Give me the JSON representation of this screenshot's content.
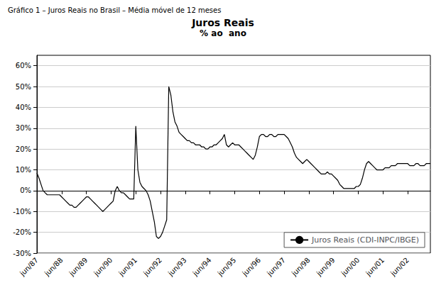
{
  "chart_data": {
    "type": "line",
    "outer_title": "Gráfico 1 – Juros Reais no Brasil – Média móvel de 12 meses",
    "title": "Juros Reais",
    "subtitle": "% ao  ano",
    "categories": [
      "jun/87",
      null,
      null,
      null,
      null,
      null,
      null,
      null,
      null,
      null,
      null,
      null,
      "jun/88",
      null,
      null,
      null,
      null,
      null,
      null,
      null,
      null,
      null,
      null,
      null,
      "jun/89",
      null,
      null,
      null,
      null,
      null,
      null,
      null,
      null,
      null,
      null,
      null,
      "jun/90",
      null,
      null,
      null,
      null,
      null,
      null,
      null,
      null,
      null,
      null,
      null,
      "jun/91",
      null,
      null,
      null,
      null,
      null,
      null,
      null,
      null,
      null,
      null,
      null,
      "jun/92",
      null,
      null,
      null,
      null,
      null,
      null,
      null,
      null,
      null,
      null,
      null,
      "jun/93",
      null,
      null,
      null,
      null,
      null,
      null,
      null,
      null,
      null,
      null,
      null,
      "jun/94",
      null,
      null,
      null,
      null,
      null,
      null,
      null,
      null,
      null,
      null,
      null,
      "jun/95",
      null,
      null,
      null,
      null,
      null,
      null,
      null,
      null,
      null,
      null,
      null,
      "jun/96",
      null,
      null,
      null,
      null,
      null,
      null,
      null,
      null,
      null,
      null,
      null,
      "jun/97",
      null,
      null,
      null,
      null,
      null,
      null,
      null,
      null,
      null,
      null,
      null,
      "jun/98",
      null,
      null,
      null,
      null,
      null,
      null,
      null,
      null,
      null,
      null,
      null,
      "jun/99",
      null,
      null,
      null,
      null,
      null,
      null,
      null,
      null,
      null,
      null,
      null,
      "jun/00",
      null,
      null,
      null,
      null,
      null,
      null,
      null,
      null,
      null,
      null,
      null,
      "jun/01",
      null,
      null,
      null,
      null,
      null,
      null,
      null,
      null,
      null,
      null,
      null,
      "jun/02",
      null,
      null,
      null,
      null,
      null,
      null,
      null,
      null,
      null,
      null,
      null
    ],
    "series": [
      {
        "name": "Juros Reais (CDI-INPC/IBGE)",
        "color": "#000000",
        "values": [
          0.085,
          0.06,
          0.03,
          0.0,
          -0.01,
          -0.02,
          -0.02,
          -0.02,
          -0.02,
          -0.02,
          -0.02,
          -0.02,
          -0.03,
          -0.04,
          -0.05,
          -0.06,
          -0.07,
          -0.07,
          -0.08,
          -0.08,
          -0.07,
          -0.06,
          -0.05,
          -0.04,
          -0.03,
          -0.03,
          -0.04,
          -0.05,
          -0.06,
          -0.07,
          -0.08,
          -0.09,
          -0.1,
          -0.09,
          -0.08,
          -0.07,
          -0.06,
          -0.05,
          0.0,
          0.02,
          0.0,
          -0.01,
          -0.01,
          -0.02,
          -0.03,
          -0.04,
          -0.04,
          -0.04,
          0.31,
          0.1,
          0.04,
          0.02,
          0.01,
          0.0,
          -0.02,
          -0.05,
          -0.1,
          -0.15,
          -0.22,
          -0.23,
          -0.22,
          -0.2,
          -0.17,
          -0.14,
          0.5,
          0.46,
          0.38,
          0.33,
          0.31,
          0.28,
          0.27,
          0.26,
          0.25,
          0.24,
          0.24,
          0.23,
          0.23,
          0.22,
          0.22,
          0.22,
          0.21,
          0.21,
          0.2,
          0.2,
          0.21,
          0.21,
          0.22,
          0.22,
          0.23,
          0.24,
          0.25,
          0.27,
          0.22,
          0.21,
          0.22,
          0.23,
          0.22,
          0.22,
          0.22,
          0.21,
          0.2,
          0.19,
          0.18,
          0.17,
          0.16,
          0.15,
          0.17,
          0.21,
          0.26,
          0.27,
          0.27,
          0.26,
          0.26,
          0.27,
          0.27,
          0.26,
          0.26,
          0.27,
          0.27,
          0.27,
          0.27,
          0.26,
          0.25,
          0.23,
          0.21,
          0.18,
          0.16,
          0.15,
          0.14,
          0.13,
          0.14,
          0.15,
          0.14,
          0.13,
          0.12,
          0.11,
          0.1,
          0.09,
          0.08,
          0.08,
          0.08,
          0.09,
          0.08,
          0.08,
          0.07,
          0.06,
          0.05,
          0.03,
          0.02,
          0.01,
          0.01,
          0.01,
          0.01,
          0.01,
          0.01,
          0.02,
          0.02,
          0.03,
          0.06,
          0.1,
          0.13,
          0.14,
          0.13,
          0.12,
          0.11,
          0.1,
          0.1,
          0.1,
          0.1,
          0.11,
          0.11,
          0.11,
          0.12,
          0.12,
          0.12,
          0.13,
          0.13,
          0.13,
          0.13,
          0.13,
          0.13,
          0.12,
          0.12,
          0.12,
          0.13,
          0.13,
          0.12,
          0.12,
          0.12,
          0.13,
          0.13,
          0.13
        ]
      }
    ],
    "ylim": [
      -0.3,
      0.65
    ],
    "yticks": [
      {
        "value": -0.3,
        "label": "-30%"
      },
      {
        "value": -0.2,
        "label": "-20%"
      },
      {
        "value": -0.1,
        "label": "-10%"
      },
      {
        "value": 0.0,
        "label": "0%"
      },
      {
        "value": 0.1,
        "label": "10%"
      },
      {
        "value": 0.2,
        "label": "20%"
      },
      {
        "value": 0.3,
        "label": "30%"
      },
      {
        "value": 0.4,
        "label": "40%"
      },
      {
        "value": 0.5,
        "label": "50%"
      },
      {
        "value": 0.6,
        "label": "60%"
      }
    ],
    "grid": true,
    "legend": "lower right"
  }
}
